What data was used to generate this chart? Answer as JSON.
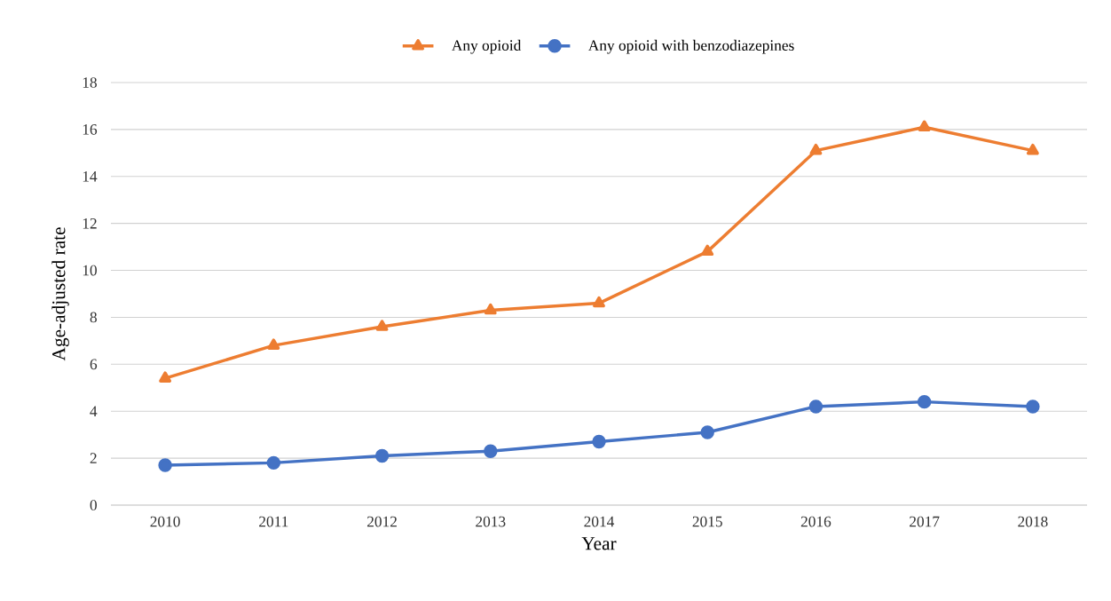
{
  "chart_data": {
    "type": "line",
    "xlabel": "Year",
    "ylabel": "Age-adjusted rate",
    "categories": [
      "2010",
      "2011",
      "2012",
      "2013",
      "2014",
      "2015",
      "2016",
      "2017",
      "2018"
    ],
    "series": [
      {
        "name": "Any opioid",
        "color": "#ed7d31",
        "marker": "triangle",
        "values": [
          5.4,
          6.8,
          7.6,
          8.3,
          8.6,
          10.8,
          15.1,
          16.1,
          15.1
        ]
      },
      {
        "name": "Any opioid with benzodiazepines",
        "color": "#4472c4",
        "marker": "circle",
        "values": [
          1.7,
          1.8,
          2.1,
          2.3,
          2.7,
          3.1,
          4.2,
          4.4,
          4.2
        ]
      }
    ],
    "ylim": [
      0,
      18
    ],
    "yticks": [
      0,
      2,
      4,
      6,
      8,
      10,
      12,
      14,
      16,
      18
    ],
    "grid": "y",
    "legend": "top",
    "line_style": "solid"
  }
}
